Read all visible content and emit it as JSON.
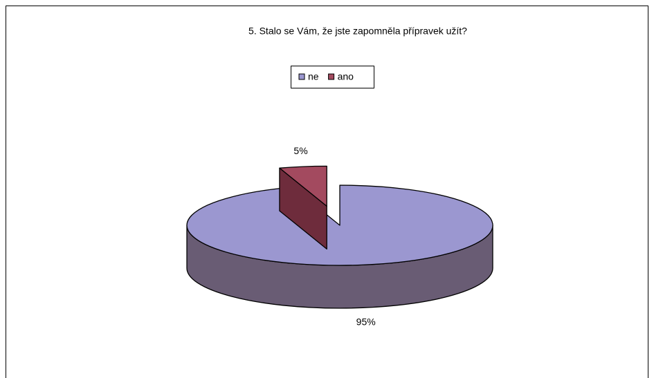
{
  "chart_data": {
    "type": "pie",
    "title": "5. Stalo se Vám, že jste zapomněla přípravek užít?",
    "categories": [
      "ne",
      "ano"
    ],
    "values": [
      95,
      5
    ],
    "value_labels": [
      "95%",
      "5%"
    ],
    "colors": [
      "#9b97d0",
      "#a34a5f"
    ],
    "side_colors": [
      "#695c74",
      "#6e2c3c"
    ],
    "legend": "top"
  }
}
